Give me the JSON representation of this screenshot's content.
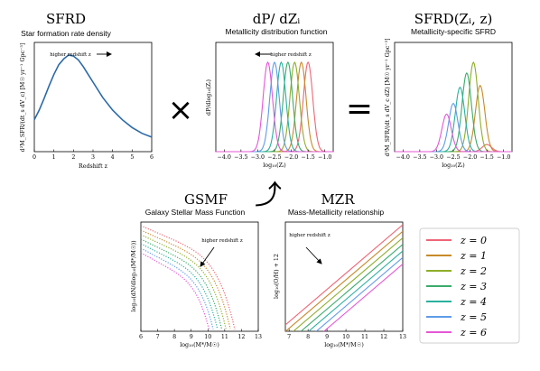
{
  "operators": {
    "times": "×",
    "equals": "=",
    "arrow": "⤴"
  },
  "panels": {
    "sfrd": {
      "title": "SFRD",
      "subtitle": "Star formation rate density",
      "xlabel": "Redshift z",
      "ylabel": "d²M_SFR/(dt_s dV_c) [M☉ yr⁻¹ Gpc⁻³]",
      "annotation": "higher redshift z",
      "xticks": [
        "0",
        "1",
        "2",
        "3",
        "4",
        "5",
        "6"
      ]
    },
    "dpdz": {
      "title": "dP/ dZᵢ",
      "subtitle": "Metallicity distribution function",
      "xlabel": "log₁₀(Zᵢ)",
      "ylabel": "dP/dlog₁₀(Zᵢ)",
      "annotation": "higher redshift z",
      "xticks": [
        "−4.0",
        "−3.5",
        "−3.0",
        "−2.5",
        "−2.0",
        "−1.5",
        "−1.0"
      ]
    },
    "msfrd": {
      "title": "SFRD(Zᵢ, z)",
      "subtitle": "Metallicity-specific SFRD",
      "xlabel": "log₁₀(Zᵢ)",
      "ylabel": "d³M_SFR/(dt_s dV_c dZ) [M☉ yr⁻¹ Gpc⁻³]",
      "xticks": [
        "−4.0",
        "−3.5",
        "−3.0",
        "−2.5",
        "−2.0",
        "−1.5",
        "−1.0"
      ]
    },
    "gsmf": {
      "title": "GSMF",
      "subtitle": "Galaxy Stellar Mass Function",
      "xlabel": "log₁₀(M*/M☉)",
      "ylabel": "log₁₀(dN/dlog₁₀(M*/M☉))",
      "annotation": "higher redshift z",
      "xticks": [
        "6",
        "7",
        "8",
        "9",
        "10",
        "11",
        "12",
        "13"
      ]
    },
    "mzr": {
      "title": "MZR",
      "subtitle": "Mass-Metallicity relationship",
      "xlabel": "log₁₀(M*/M☉)",
      "ylabel": "log₁₀(O/H) + 12",
      "annotation": "higher redshift z",
      "xticks": [
        "7",
        "8",
        "9",
        "10",
        "11",
        "12",
        "13"
      ]
    }
  },
  "legend": [
    {
      "label": "z = 0",
      "color": "#ee6677"
    },
    {
      "label": "z = 1",
      "color": "#c88a2a"
    },
    {
      "label": "z = 2",
      "color": "#8fae2a"
    },
    {
      "label": "z = 3",
      "color": "#3aab6a"
    },
    {
      "label": "z = 4",
      "color": "#2ab0a0"
    },
    {
      "label": "z = 5",
      "color": "#5f9be8"
    },
    {
      "label": "z = 6",
      "color": "#e656d6"
    }
  ],
  "chart_data": [
    {
      "type": "line",
      "panel": "sfrd",
      "xlim": [
        0,
        6
      ],
      "x": [
        0,
        0.25,
        0.5,
        0.75,
        1,
        1.25,
        1.5,
        1.75,
        2,
        2.25,
        2.5,
        2.75,
        3,
        3.5,
        4,
        4.5,
        5,
        5.5,
        6
      ],
      "y_rel": [
        0.33,
        0.43,
        0.55,
        0.68,
        0.8,
        0.9,
        0.96,
        1.0,
        0.99,
        0.95,
        0.88,
        0.8,
        0.72,
        0.56,
        0.43,
        0.33,
        0.25,
        0.19,
        0.15
      ],
      "series": [
        {
          "name": "",
          "color": "#2b6aa8"
        }
      ]
    },
    {
      "type": "line",
      "panel": "dpdz",
      "xlim": [
        -4.25,
        -0.75
      ],
      "peaks": [
        -1.5,
        -1.7,
        -1.9,
        -2.1,
        -2.3,
        -2.5,
        -2.7
      ],
      "sigma": 0.14,
      "amplitude_rel": [
        1,
        1,
        1,
        1,
        1,
        1,
        1
      ]
    },
    {
      "type": "line",
      "panel": "msfrd",
      "xlim": [
        -4.25,
        -0.75
      ],
      "peaks": [
        -1.5,
        -1.7,
        -1.9,
        -2.1,
        -2.3,
        -2.5,
        -2.7
      ],
      "sigma": 0.14,
      "amplitude_rel": [
        0.08,
        0.74,
        1.0,
        0.88,
        0.72,
        0.54,
        0.42
      ]
    },
    {
      "type": "line",
      "panel": "gsmf",
      "xlim": [
        6,
        13
      ],
      "knee_mass": [
        11.6,
        11.4,
        11.2,
        11.0,
        10.8,
        10.6,
        10.4
      ]
    },
    {
      "type": "line",
      "panel": "mzr",
      "xlim": [
        6.8,
        13
      ],
      "offset_rel": [
        0.0,
        0.06,
        0.12,
        0.18,
        0.24,
        0.3,
        0.36
      ]
    }
  ]
}
